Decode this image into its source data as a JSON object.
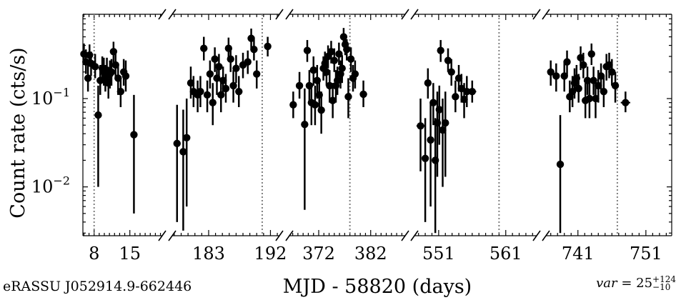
{
  "chart_data": {
    "type": "scatter",
    "title": "",
    "xlabel": "MJD - 58820 (days)",
    "ylabel": "Count rate (cts/s)",
    "yscale": "log",
    "ylim": [
      0.0028,
      0.9
    ],
    "yticks": [
      {
        "value": 0.1,
        "base": "10",
        "exp": "−1"
      },
      {
        "value": 0.01,
        "base": "10",
        "exp": "−2"
      }
    ],
    "grid": false,
    "legend": "none",
    "marker_color": "#000000",
    "vline_color": "#808080",
    "segments": [
      {
        "xlim": [
          5.8,
          21.2
        ],
        "ticks": [
          {
            "value": 8,
            "label": "8"
          },
          {
            "value": 15,
            "label": "15"
          }
        ],
        "vlines": [
          8.0
        ],
        "points": [
          {
            "x": 6.0,
            "y": 0.32,
            "lo": 0.24,
            "hi": 0.42
          },
          {
            "x": 6.4,
            "y": 0.26,
            "lo": 0.19,
            "hi": 0.36
          },
          {
            "x": 6.8,
            "y": 0.17,
            "lo": 0.12,
            "hi": 0.24
          },
          {
            "x": 7.1,
            "y": 0.31,
            "lo": 0.23,
            "hi": 0.41
          },
          {
            "x": 7.4,
            "y": 0.25,
            "lo": 0.18,
            "hi": 0.34
          },
          {
            "x": 8.2,
            "y": 0.23,
            "lo": 0.17,
            "hi": 0.32
          },
          {
            "x": 8.8,
            "y": 0.065,
            "lo": 0.01,
            "hi": 0.14
          },
          {
            "x": 9.2,
            "y": 0.16,
            "lo": 0.11,
            "hi": 0.24
          },
          {
            "x": 9.6,
            "y": 0.22,
            "lo": 0.15,
            "hi": 0.3
          },
          {
            "x": 9.9,
            "y": 0.2,
            "lo": 0.14,
            "hi": 0.29
          },
          {
            "x": 10.2,
            "y": 0.17,
            "lo": 0.12,
            "hi": 0.24
          },
          {
            "x": 10.5,
            "y": 0.21,
            "lo": 0.15,
            "hi": 0.29
          },
          {
            "x": 10.8,
            "y": 0.15,
            "lo": 0.1,
            "hi": 0.22
          },
          {
            "x": 11.1,
            "y": 0.19,
            "lo": 0.13,
            "hi": 0.27
          },
          {
            "x": 11.4,
            "y": 0.2,
            "lo": 0.14,
            "hi": 0.28
          },
          {
            "x": 11.8,
            "y": 0.34,
            "lo": 0.25,
            "hi": 0.44
          },
          {
            "x": 12.2,
            "y": 0.24,
            "lo": 0.17,
            "hi": 0.33
          },
          {
            "x": 12.7,
            "y": 0.17,
            "lo": 0.11,
            "hi": 0.25
          },
          {
            "x": 13.2,
            "y": 0.12,
            "lo": 0.08,
            "hi": 0.18
          },
          {
            "x": 13.8,
            "y": 0.2,
            "lo": 0.14,
            "hi": 0.28
          },
          {
            "x": 14.2,
            "y": 0.18,
            "lo": 0.12,
            "hi": 0.27
          },
          {
            "x": 15.8,
            "y": 0.039,
            "lo": 0.005,
            "hi": 0.11,
            "xerr": 0.6
          }
        ]
      },
      {
        "xlim": [
          177.8,
          193.2
        ],
        "ticks": [
          {
            "value": 183,
            "label": "183"
          },
          {
            "value": 192,
            "label": "192"
          }
        ],
        "vlines": [
          190.8
        ],
        "points": [
          {
            "x": 178.4,
            "y": 0.031,
            "lo": 0.004,
            "hi": 0.085,
            "xerr": 0.5
          },
          {
            "x": 179.3,
            "y": 0.025,
            "lo": 0.0032,
            "hi": 0.075
          },
          {
            "x": 179.8,
            "y": 0.036,
            "lo": 0.006,
            "hi": 0.1
          },
          {
            "x": 180.4,
            "y": 0.15,
            "lo": 0.1,
            "hi": 0.23
          },
          {
            "x": 180.8,
            "y": 0.12,
            "lo": 0.08,
            "hi": 0.18
          },
          {
            "x": 181.4,
            "y": 0.11,
            "lo": 0.07,
            "hi": 0.16
          },
          {
            "x": 181.8,
            "y": 0.12,
            "lo": 0.08,
            "hi": 0.18
          },
          {
            "x": 182.3,
            "y": 0.37,
            "lo": 0.27,
            "hi": 0.5
          },
          {
            "x": 182.8,
            "y": 0.11,
            "lo": 0.07,
            "hi": 0.16
          },
          {
            "x": 183.2,
            "y": 0.19,
            "lo": 0.13,
            "hi": 0.27
          },
          {
            "x": 183.6,
            "y": 0.09,
            "lo": 0.05,
            "hi": 0.15
          },
          {
            "x": 183.9,
            "y": 0.28,
            "lo": 0.2,
            "hi": 0.38
          },
          {
            "x": 184.2,
            "y": 0.17,
            "lo": 0.11,
            "hi": 0.25
          },
          {
            "x": 184.5,
            "y": 0.23,
            "lo": 0.16,
            "hi": 0.32
          },
          {
            "x": 184.8,
            "y": 0.11,
            "lo": 0.07,
            "hi": 0.16
          },
          {
            "x": 185.1,
            "y": 0.16,
            "lo": 0.11,
            "hi": 0.23
          },
          {
            "x": 185.5,
            "y": 0.13,
            "lo": 0.09,
            "hi": 0.19
          },
          {
            "x": 185.9,
            "y": 0.37,
            "lo": 0.27,
            "hi": 0.49
          },
          {
            "x": 186.2,
            "y": 0.28,
            "lo": 0.2,
            "hi": 0.38
          },
          {
            "x": 186.6,
            "y": 0.14,
            "lo": 0.09,
            "hi": 0.21
          },
          {
            "x": 187.0,
            "y": 0.22,
            "lo": 0.15,
            "hi": 0.31
          },
          {
            "x": 187.4,
            "y": 0.12,
            "lo": 0.08,
            "hi": 0.18
          },
          {
            "x": 188.0,
            "y": 0.24,
            "lo": 0.17,
            "hi": 0.33
          },
          {
            "x": 188.7,
            "y": 0.26,
            "lo": 0.19,
            "hi": 0.35
          },
          {
            "x": 189.2,
            "y": 0.48,
            "lo": 0.36,
            "hi": 0.62
          },
          {
            "x": 189.6,
            "y": 0.36,
            "lo": 0.27,
            "hi": 0.47
          },
          {
            "x": 190.0,
            "y": 0.19,
            "lo": 0.13,
            "hi": 0.27
          },
          {
            "x": 191.6,
            "y": 0.39,
            "lo": 0.3,
            "hi": 0.5
          }
        ]
      },
      {
        "xlim": [
          366.5,
          388.5
        ],
        "ticks": [
          {
            "value": 372,
            "label": "372"
          },
          {
            "value": 382,
            "label": "382"
          }
        ],
        "vlines": [
          378.0
        ],
        "points": [
          {
            "x": 367.1,
            "y": 0.085,
            "lo": 0.06,
            "hi": 0.12,
            "xerr": 0.5
          },
          {
            "x": 368.3,
            "y": 0.14,
            "lo": 0.1,
            "hi": 0.2
          },
          {
            "x": 369.3,
            "y": 0.051,
            "lo": 0.0055,
            "hi": 0.13
          },
          {
            "x": 369.8,
            "y": 0.35,
            "lo": 0.26,
            "hi": 0.46
          },
          {
            "x": 370.2,
            "y": 0.14,
            "lo": 0.09,
            "hi": 0.21
          },
          {
            "x": 370.6,
            "y": 0.09,
            "lo": 0.05,
            "hi": 0.15
          },
          {
            "x": 371.0,
            "y": 0.21,
            "lo": 0.14,
            "hi": 0.3
          },
          {
            "x": 371.3,
            "y": 0.085,
            "lo": 0.05,
            "hi": 0.14
          },
          {
            "x": 371.7,
            "y": 0.16,
            "lo": 0.1,
            "hi": 0.24
          },
          {
            "x": 372.1,
            "y": 0.11,
            "lo": 0.07,
            "hi": 0.17
          },
          {
            "x": 372.5,
            "y": 0.074,
            "lo": 0.04,
            "hi": 0.12
          },
          {
            "x": 372.9,
            "y": 0.22,
            "lo": 0.16,
            "hi": 0.3
          },
          {
            "x": 373.2,
            "y": 0.25,
            "lo": 0.18,
            "hi": 0.34
          },
          {
            "x": 373.5,
            "y": 0.2,
            "lo": 0.14,
            "hi": 0.28
          },
          {
            "x": 373.8,
            "y": 0.3,
            "lo": 0.22,
            "hi": 0.4
          },
          {
            "x": 374.1,
            "y": 0.14,
            "lo": 0.09,
            "hi": 0.21
          },
          {
            "x": 374.4,
            "y": 0.34,
            "lo": 0.25,
            "hi": 0.45
          },
          {
            "x": 374.7,
            "y": 0.095,
            "lo": 0.06,
            "hi": 0.15
          },
          {
            "x": 375.0,
            "y": 0.27,
            "lo": 0.2,
            "hi": 0.37
          },
          {
            "x": 375.3,
            "y": 0.14,
            "lo": 0.09,
            "hi": 0.21
          },
          {
            "x": 375.6,
            "y": 0.16,
            "lo": 0.11,
            "hi": 0.23
          },
          {
            "x": 375.9,
            "y": 0.32,
            "lo": 0.24,
            "hi": 0.43
          },
          {
            "x": 376.2,
            "y": 0.19,
            "lo": 0.13,
            "hi": 0.27
          },
          {
            "x": 376.5,
            "y": 0.22,
            "lo": 0.15,
            "hi": 0.31
          },
          {
            "x": 376.8,
            "y": 0.5,
            "lo": 0.39,
            "hi": 0.63
          },
          {
            "x": 377.1,
            "y": 0.41,
            "lo": 0.31,
            "hi": 0.53
          },
          {
            "x": 377.4,
            "y": 0.36,
            "lo": 0.27,
            "hi": 0.47
          },
          {
            "x": 377.7,
            "y": 0.105,
            "lo": 0.06,
            "hi": 0.17
          },
          {
            "x": 378.2,
            "y": 0.28,
            "lo": 0.2,
            "hi": 0.38
          },
          {
            "x": 378.6,
            "y": 0.17,
            "lo": 0.12,
            "hi": 0.24
          },
          {
            "x": 379.0,
            "y": 0.19,
            "lo": 0.13,
            "hi": 0.27
          },
          {
            "x": 380.6,
            "y": 0.112,
            "lo": 0.08,
            "hi": 0.16,
            "xerr": 0.7
          }
        ]
      },
      {
        "xlim": [
          547.5,
          565.5
        ],
        "ticks": [
          {
            "value": 551,
            "label": "551"
          },
          {
            "value": 561,
            "label": "561"
          }
        ],
        "vlines": [
          560.0
        ],
        "points": [
          {
            "x": 548.3,
            "y": 0.049,
            "lo": 0.015,
            "hi": 0.1,
            "xerr": 0.6
          },
          {
            "x": 549.0,
            "y": 0.021,
            "lo": 0.004,
            "hi": 0.06
          },
          {
            "x": 549.4,
            "y": 0.15,
            "lo": 0.1,
            "hi": 0.22
          },
          {
            "x": 549.8,
            "y": 0.034,
            "lo": 0.006,
            "hi": 0.09
          },
          {
            "x": 550.2,
            "y": 0.09,
            "lo": 0.05,
            "hi": 0.15
          },
          {
            "x": 550.5,
            "y": 0.02,
            "lo": 0.003,
            "hi": 0.06
          },
          {
            "x": 550.8,
            "y": 0.053,
            "lo": 0.013,
            "hi": 0.12
          },
          {
            "x": 551.1,
            "y": 0.075,
            "lo": 0.03,
            "hi": 0.14
          },
          {
            "x": 551.3,
            "y": 0.35,
            "lo": 0.26,
            "hi": 0.46
          },
          {
            "x": 551.6,
            "y": 0.044,
            "lo": 0.01,
            "hi": 0.1
          },
          {
            "x": 552.0,
            "y": 0.053,
            "lo": 0.013,
            "hi": 0.12
          },
          {
            "x": 552.4,
            "y": 0.27,
            "lo": 0.2,
            "hi": 0.37
          },
          {
            "x": 552.9,
            "y": 0.2,
            "lo": 0.14,
            "hi": 0.28
          },
          {
            "x": 553.5,
            "y": 0.105,
            "lo": 0.07,
            "hi": 0.16
          },
          {
            "x": 554.0,
            "y": 0.17,
            "lo": 0.12,
            "hi": 0.24
          },
          {
            "x": 554.4,
            "y": 0.13,
            "lo": 0.09,
            "hi": 0.19
          },
          {
            "x": 554.8,
            "y": 0.098,
            "lo": 0.06,
            "hi": 0.15
          },
          {
            "x": 555.2,
            "y": 0.12,
            "lo": 0.08,
            "hi": 0.18
          },
          {
            "x": 556.0,
            "y": 0.12,
            "lo": 0.09,
            "hi": 0.16,
            "xerr": 0.6
          }
        ]
      },
      {
        "xlim": [
          736.4,
          754.8
        ],
        "ticks": [
          {
            "value": 741,
            "label": "741"
          },
          {
            "value": 751,
            "label": "751"
          }
        ],
        "vlines": [
          746.8
        ],
        "points": [
          {
            "x": 737.0,
            "y": 0.2,
            "lo": 0.14,
            "hi": 0.27
          },
          {
            "x": 737.8,
            "y": 0.18,
            "lo": 0.12,
            "hi": 0.25
          },
          {
            "x": 738.4,
            "y": 0.018,
            "lo": 0.003,
            "hi": 0.065
          },
          {
            "x": 739.0,
            "y": 0.18,
            "lo": 0.12,
            "hi": 0.26
          },
          {
            "x": 739.4,
            "y": 0.26,
            "lo": 0.18,
            "hi": 0.35
          },
          {
            "x": 739.8,
            "y": 0.105,
            "lo": 0.07,
            "hi": 0.16
          },
          {
            "x": 740.2,
            "y": 0.12,
            "lo": 0.08,
            "hi": 0.18
          },
          {
            "x": 740.5,
            "y": 0.15,
            "lo": 0.1,
            "hi": 0.22
          },
          {
            "x": 740.8,
            "y": 0.17,
            "lo": 0.12,
            "hi": 0.24
          },
          {
            "x": 741.1,
            "y": 0.13,
            "lo": 0.09,
            "hi": 0.19
          },
          {
            "x": 741.4,
            "y": 0.29,
            "lo": 0.21,
            "hi": 0.39
          },
          {
            "x": 741.8,
            "y": 0.24,
            "lo": 0.17,
            "hi": 0.33
          },
          {
            "x": 742.1,
            "y": 0.095,
            "lo": 0.06,
            "hi": 0.15
          },
          {
            "x": 742.4,
            "y": 0.16,
            "lo": 0.11,
            "hi": 0.23
          },
          {
            "x": 742.7,
            "y": 0.1,
            "lo": 0.06,
            "hi": 0.16
          },
          {
            "x": 743.0,
            "y": 0.32,
            "lo": 0.24,
            "hi": 0.42
          },
          {
            "x": 743.3,
            "y": 0.16,
            "lo": 0.11,
            "hi": 0.23
          },
          {
            "x": 743.6,
            "y": 0.1,
            "lo": 0.06,
            "hi": 0.16
          },
          {
            "x": 744.0,
            "y": 0.14,
            "lo": 0.09,
            "hi": 0.21
          },
          {
            "x": 744.4,
            "y": 0.18,
            "lo": 0.12,
            "hi": 0.25
          },
          {
            "x": 744.8,
            "y": 0.12,
            "lo": 0.08,
            "hi": 0.18
          },
          {
            "x": 745.2,
            "y": 0.23,
            "lo": 0.16,
            "hi": 0.32
          },
          {
            "x": 745.6,
            "y": 0.24,
            "lo": 0.17,
            "hi": 0.33
          },
          {
            "x": 746.0,
            "y": 0.2,
            "lo": 0.14,
            "hi": 0.28
          },
          {
            "x": 746.5,
            "y": 0.14,
            "lo": 0.09,
            "hi": 0.2
          },
          {
            "x": 748.0,
            "y": 0.09,
            "lo": 0.07,
            "hi": 0.12,
            "xerr": 0.7
          }
        ]
      }
    ]
  },
  "footer": {
    "source_name": "eRASSU J052914.9-662446",
    "var_label": "var",
    "var_equals": " = ",
    "var_value": "25",
    "var_plus": "+124",
    "var_minus": "−10"
  }
}
